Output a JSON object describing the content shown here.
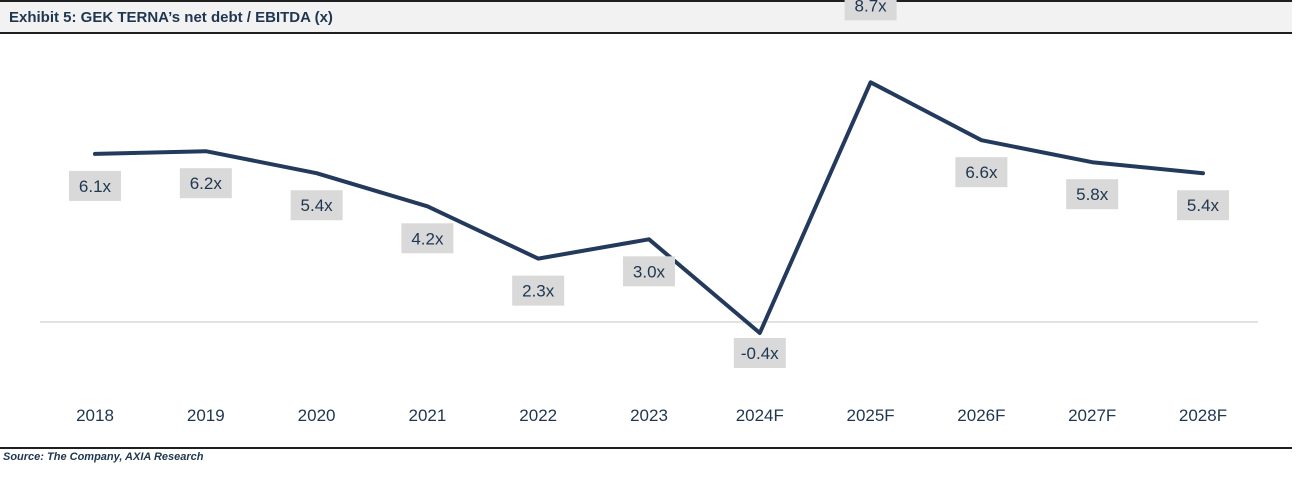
{
  "title": "Exhibit 5: GEK TERNA’s net debt / EBITDA (x)",
  "source": "Source: The Company, AXIA Research",
  "colors": {
    "line": "#243a5c",
    "label_box": "#d9d9d9",
    "zero_line": "#d9d9d9",
    "text": "#1f3650"
  },
  "chart_data": {
    "type": "line",
    "categories": [
      "2018",
      "2019",
      "2020",
      "2021",
      "2022",
      "2023",
      "2024F",
      "2025F",
      "2026F",
      "2027F",
      "2028F"
    ],
    "values": [
      6.1,
      6.2,
      5.4,
      4.2,
      2.3,
      3.0,
      -0.4,
      8.7,
      6.6,
      5.8,
      5.4
    ],
    "data_labels": [
      "6.1x",
      "6.2x",
      "5.4x",
      "4.2x",
      "2.3x",
      "3.0x",
      "-0.4x",
      "8.7x",
      "6.6x",
      "5.8x",
      "5.4x"
    ],
    "title": "Exhibit 5: GEK TERNA’s net debt / EBITDA (x)",
    "xlabel": "",
    "ylabel": "",
    "grid": false,
    "legend": "none",
    "y_axis_visible": false
  }
}
